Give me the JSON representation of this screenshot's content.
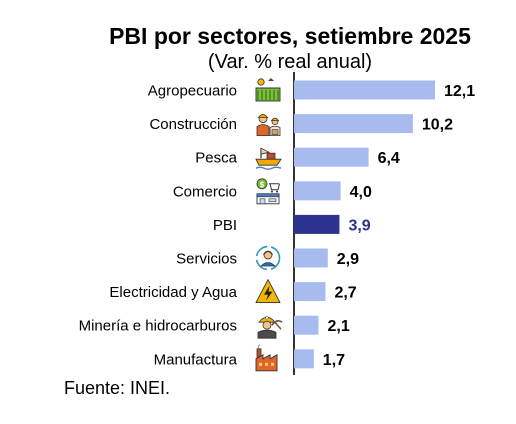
{
  "chart_data": {
    "type": "bar",
    "orientation": "horizontal",
    "title": "PBI por sectores, setiembre 2025",
    "subtitle": "(Var. % real anual)",
    "categories": [
      "Agropecuario",
      "Construcción",
      "Pesca",
      "Comercio",
      "PBI",
      "Servicios",
      "Electricidad y Agua",
      "Minería e hidrocarburos",
      "Manufactura"
    ],
    "values": [
      12.1,
      10.2,
      6.4,
      4.0,
      3.9,
      2.9,
      2.7,
      2.1,
      1.7
    ],
    "value_labels": [
      "12,1",
      "10,2",
      "6,4",
      "4,0",
      "3,9",
      "2,9",
      "2,7",
      "2,1",
      "1,7"
    ],
    "icons": [
      "farm-field-icon",
      "construction-workers-icon",
      "fishing-boat-icon",
      "store-shopping-icon",
      "",
      "customer-service-icon",
      "lightning-bolt-icon",
      "miner-worker-icon",
      "factory-icon"
    ],
    "highlight_category": "PBI",
    "xlim": [
      0,
      13
    ],
    "colors": {
      "bar": "#a8bbef",
      "highlight_bar": "#2d3190",
      "highlight_label": "#2d3190",
      "label": "#000000",
      "axis": "#000000"
    },
    "grid": false,
    "legend": "none"
  },
  "source": "Fuente: INEI."
}
